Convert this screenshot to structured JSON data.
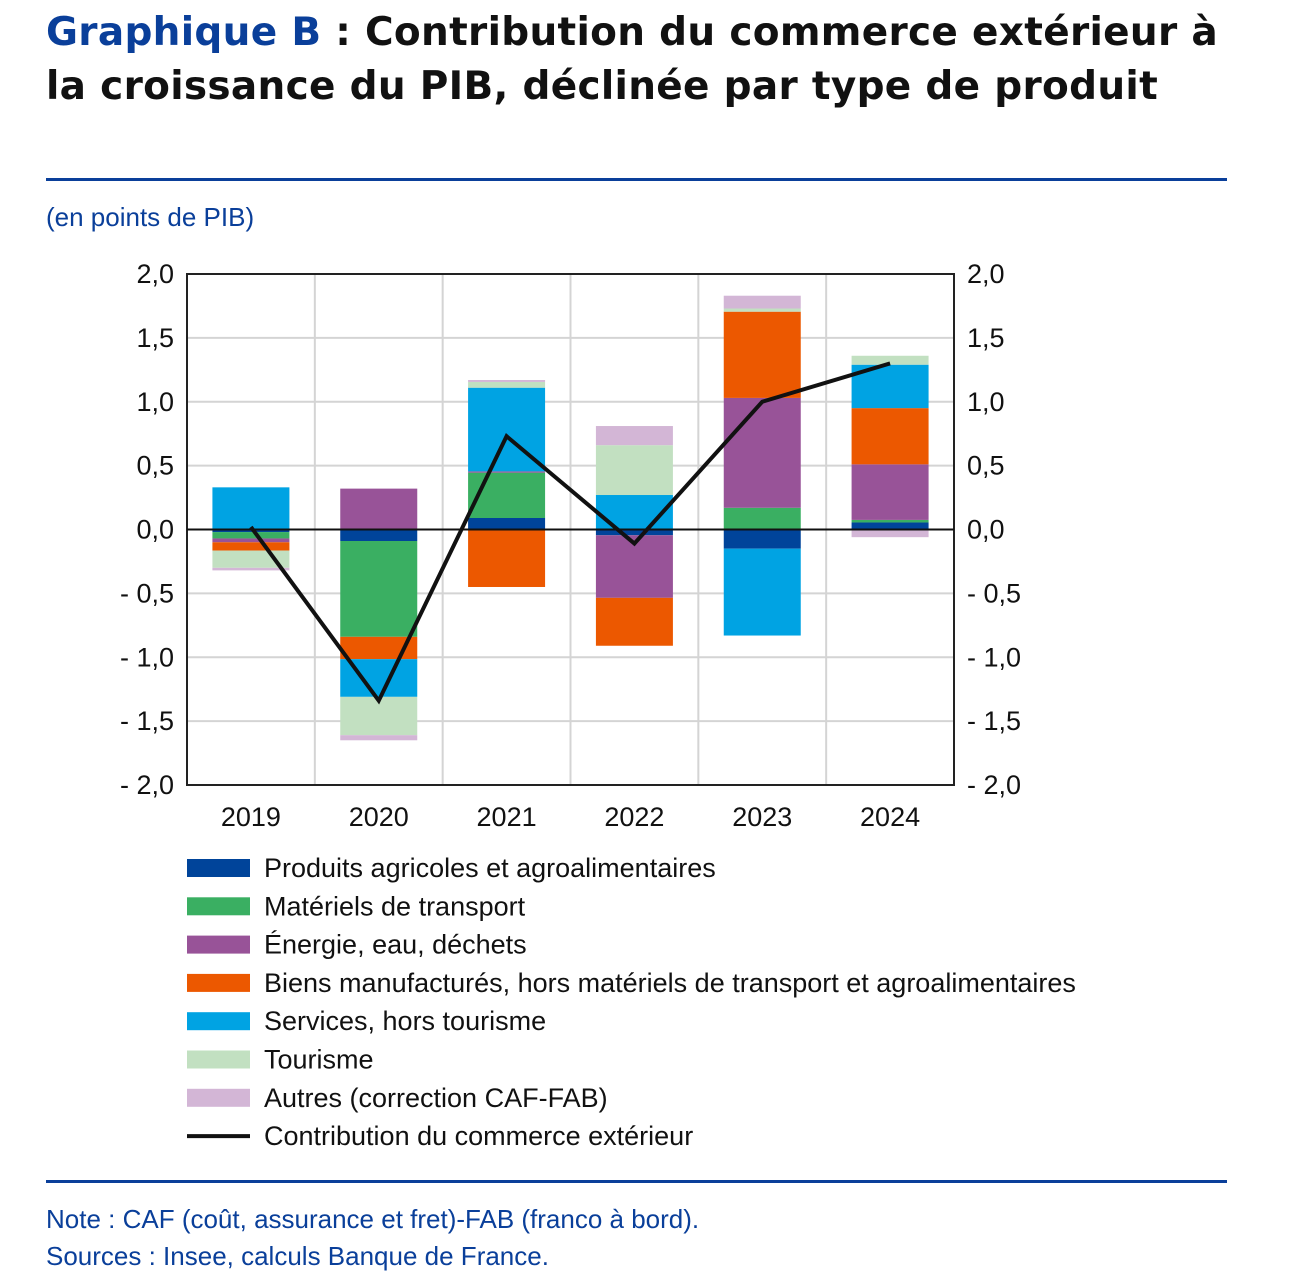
{
  "title": {
    "prefix": "Graphique B",
    "text": " : Contribution du commerce extérieur à la croissance du PIB, déclinée par type de produit"
  },
  "unit_label": "(en points de PIB)",
  "notes": {
    "note": "Note : CAF (coût, assurance et fret)-FAB (franco à bord).",
    "sources": "Sources : Insee, calculs Banque de France."
  },
  "chart_data": {
    "type": "bar",
    "stacked": true,
    "categories": [
      "2019",
      "2020",
      "2021",
      "2022",
      "2023",
      "2024"
    ],
    "ylim": [
      -2.0,
      2.0
    ],
    "yticks": [
      "2,0",
      "1,5",
      "1,0",
      "0,5",
      "0,0",
      "- 0,5",
      "- 1,0",
      "- 1,5",
      "- 2,0"
    ],
    "ytick_values": [
      2.0,
      1.5,
      1.0,
      0.5,
      0.0,
      -0.5,
      -1.0,
      -1.5,
      -2.0
    ],
    "grid": true,
    "axes": "left and right",
    "legend_position": "bottom",
    "series": [
      {
        "name": "Produits agricoles et agroalimentaires",
        "color": "#00449a",
        "values": [
          -0.02,
          -0.09,
          0.09,
          -0.045,
          -0.15,
          0.055
        ]
      },
      {
        "name": "Matériels de transport",
        "color": "#3aaf62",
        "values": [
          -0.05,
          -0.75,
          0.355,
          0.0,
          0.17,
          0.02
        ]
      },
      {
        "name": "Énergie, eau, déchets",
        "color": "#985398",
        "values": [
          -0.03,
          0.32,
          0.01,
          -0.49,
          0.86,
          0.435
        ]
      },
      {
        "name": "Biens manufacturés, hors matériels de transport et agroalimentaires",
        "color": "#ec5800",
        "values": [
          -0.065,
          -0.175,
          -0.45,
          -0.375,
          0.675,
          0.44
        ]
      },
      {
        "name": "Services, hors tourisme",
        "color": "#00a3e3",
        "values": [
          0.33,
          -0.295,
          0.655,
          0.27,
          -0.68,
          0.34
        ]
      },
      {
        "name": "Tourisme",
        "color": "#c2e0c1",
        "values": [
          -0.135,
          -0.3,
          0.045,
          0.39,
          0.025,
          0.07
        ]
      },
      {
        "name": "Autres (correction CAF-FAB)",
        "color": "#d3b6d6",
        "values": [
          -0.02,
          -0.04,
          0.015,
          0.15,
          0.1,
          -0.06
        ]
      }
    ],
    "line": {
      "name": "Contribution du commerce extérieur",
      "color": "#111111",
      "values": [
        0.02,
        -1.34,
        0.73,
        -0.11,
        1.0,
        1.3
      ]
    }
  }
}
